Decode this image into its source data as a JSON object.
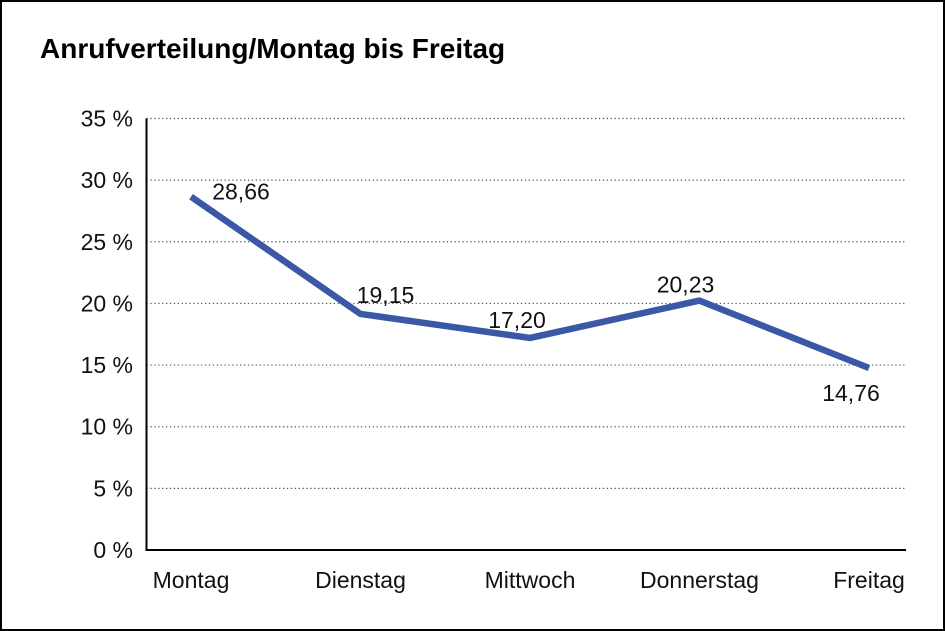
{
  "chart_data": {
    "type": "line",
    "title": "Anrufverteilung/Montag bis Freitag",
    "categories": [
      "Montag",
      "Dienstag",
      "Mittwoch",
      "Donnerstag",
      "Freitag"
    ],
    "series": [
      {
        "name": "Anrufverteilung",
        "values": [
          28.66,
          19.15,
          17.2,
          20.23,
          14.76
        ]
      }
    ],
    "value_labels": [
      "28,66",
      "19,15",
      "17,20",
      "20,23",
      "14,76"
    ],
    "xlabel": "",
    "ylabel": "",
    "ylim": [
      0,
      35
    ],
    "y_tick_step": 5,
    "y_tick_labels": [
      "35 %",
      "30 %",
      "25 %",
      "20 %",
      "15 %",
      "10 %",
      "5 %",
      "0 %"
    ],
    "grid": "horizontal-dotted",
    "legend_position": "none",
    "colors": {
      "line": "#3A58A5",
      "axis": "#000000",
      "gridline": "#555555",
      "text": "#111111",
      "background": "#FFFFFF",
      "frame_border": "#000000"
    }
  }
}
